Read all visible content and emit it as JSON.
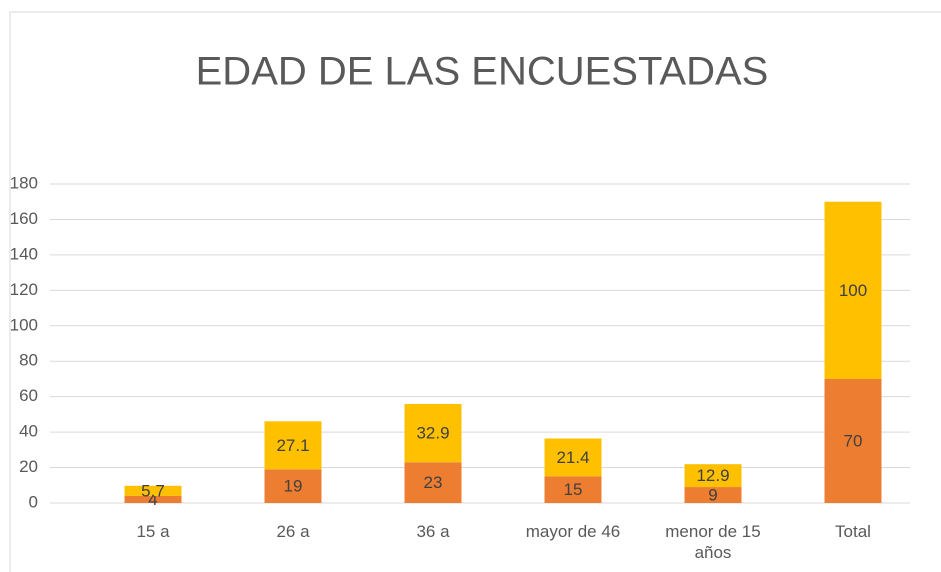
{
  "chart_data": {
    "type": "bar",
    "stacked": true,
    "title": "EDAD DE LAS ENCUESTADAS",
    "categories": [
      "15 a",
      "26 a",
      "36 a",
      "mayor de 46",
      "menor de 15 años",
      "Total"
    ],
    "series": [
      {
        "color": "#ed7d31",
        "values": [
          4,
          19,
          23,
          15,
          9,
          70
        ]
      },
      {
        "color": "#ffc000",
        "values": [
          5.7,
          27.1,
          32.9,
          21.4,
          12.9,
          100
        ]
      }
    ],
    "ylim": [
      0,
      180
    ],
    "yticks": [
      0,
      20,
      40,
      60,
      80,
      100,
      120,
      140,
      160,
      180
    ],
    "grid": true
  }
}
